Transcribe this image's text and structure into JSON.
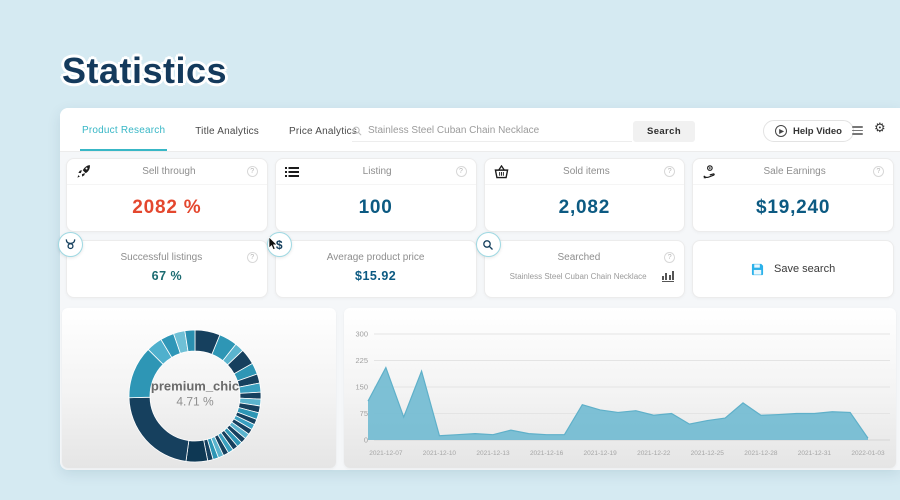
{
  "page": {
    "title": "Statistics"
  },
  "nav": {
    "tabs": [
      {
        "label": "Product Research",
        "active": true
      },
      {
        "label": "Title Analytics",
        "active": false
      },
      {
        "label": "Price Analytics",
        "active": false
      }
    ],
    "search": {
      "value": "Stainless Steel Cuban Chain Necklace",
      "button_label": "Search"
    },
    "help_video_label": "Help Video"
  },
  "icons": {
    "question": "?",
    "gear": "⚙",
    "play": "▶"
  },
  "stats": [
    {
      "title": "Sell through",
      "value": "2082 %",
      "color": "#e4472e",
      "icon": "rocket-icon"
    },
    {
      "title": "Listing",
      "value": "100",
      "color": "#0c5a82",
      "icon": "list-icon"
    },
    {
      "title": "Sold items",
      "value": "2,082",
      "color": "#0c5a82",
      "icon": "basket-icon"
    },
    {
      "title": "Sale Earnings",
      "value": "$19,240",
      "color": "#0c5a82",
      "icon": "hand-coin-icon"
    }
  ],
  "stats2": [
    {
      "title": "Successful listings",
      "value": "67 %",
      "color": "#1a6a70",
      "icon": "bull-badge-icon"
    },
    {
      "title": "Average product price",
      "value": "$15.92",
      "color": "#0c5a82",
      "icon": "dollar-badge-icon"
    },
    {
      "title": "Searched",
      "value": "Stainless Steel Cuban Chain Necklace",
      "icon": "magnifier-badge-icon"
    },
    {
      "title": "Save search",
      "icon": "floppy-icon"
    }
  ],
  "colors": {
    "accent_teal": "#38b7c6",
    "save_blue": "#2bb1ea",
    "area_fill": "#76bdd3",
    "area_stroke": "#5fb0c9"
  },
  "chart_data": [
    {
      "type": "pie",
      "subtype": "donut",
      "center_label": "premium_chic",
      "center_value": "4.71 %",
      "highlight": {
        "name": "premium_chic",
        "percent": 4.71
      },
      "segments": [
        {
          "v": 5.5,
          "c": "#16405e"
        },
        {
          "v": 4.0,
          "c": "#2e96b5"
        },
        {
          "v": 2.0,
          "c": "#5bb4ce"
        },
        {
          "v": 3.5,
          "c": "#16405e"
        },
        {
          "v": 2.5,
          "c": "#2e96b5"
        },
        {
          "v": 2.0,
          "c": "#16405e"
        },
        {
          "v": 2.0,
          "c": "#3aa0c0"
        },
        {
          "v": 1.5,
          "c": "#16405e"
        },
        {
          "v": 1.5,
          "c": "#5bb4ce"
        },
        {
          "v": 1.5,
          "c": "#16405e"
        },
        {
          "v": 1.5,
          "c": "#2e96b5"
        },
        {
          "v": 1.2,
          "c": "#16405e"
        },
        {
          "v": 1.2,
          "c": "#3aa0c0"
        },
        {
          "v": 1.2,
          "c": "#16405e"
        },
        {
          "v": 1.2,
          "c": "#5bb4ce"
        },
        {
          "v": 1.2,
          "c": "#16405e"
        },
        {
          "v": 1.2,
          "c": "#2e96b5"
        },
        {
          "v": 1.2,
          "c": "#16405e"
        },
        {
          "v": 1.2,
          "c": "#3aa0c0"
        },
        {
          "v": 1.2,
          "c": "#16405e"
        },
        {
          "v": 1.2,
          "c": "#5bb4ce"
        },
        {
          "v": 1.2,
          "c": "#2e96b5"
        },
        {
          "v": 1.2,
          "c": "#16405e"
        },
        {
          "v": 4.71,
          "c": "#0e3854"
        },
        {
          "v": 20.0,
          "c": "#16405e"
        },
        {
          "v": 11.5,
          "c": "#2e96b5"
        },
        {
          "v": 3.5,
          "c": "#4fb0cd"
        },
        {
          "v": 3.0,
          "c": "#2f97b8"
        },
        {
          "v": 2.5,
          "c": "#6fc0d6"
        },
        {
          "v": 2.2,
          "c": "#2a8fb0"
        }
      ]
    },
    {
      "type": "area",
      "x": [
        "2021-12-06",
        "2021-12-07",
        "2021-12-08",
        "2021-12-09",
        "2021-12-10",
        "2021-12-11",
        "2021-12-12",
        "2021-12-13",
        "2021-12-14",
        "2021-12-15",
        "2021-12-16",
        "2021-12-17",
        "2021-12-18",
        "2021-12-19",
        "2021-12-20",
        "2021-12-21",
        "2021-12-22",
        "2021-12-23",
        "2021-12-24",
        "2021-12-25",
        "2021-12-26",
        "2021-12-27",
        "2021-12-28",
        "2021-12-29",
        "2021-12-30",
        "2021-12-31",
        "2022-01-01",
        "2022-01-02",
        "2022-01-03"
      ],
      "values": [
        110,
        205,
        65,
        195,
        12,
        15,
        18,
        15,
        28,
        18,
        15,
        15,
        100,
        85,
        78,
        83,
        70,
        75,
        45,
        55,
        62,
        105,
        70,
        72,
        75,
        75,
        80,
        78,
        5
      ],
      "xticks": [
        "2021-12-07",
        "2021-12-10",
        "2021-12-13",
        "2021-12-16",
        "2021-12-19",
        "2021-12-22",
        "2021-12-25",
        "2021-12-28",
        "2021-12-31",
        "2022-01-03"
      ],
      "ylim": [
        0,
        300
      ],
      "yticks": [
        0,
        75,
        150,
        225,
        300
      ],
      "grid": true,
      "legend": false,
      "fill": "#76bdd3",
      "stroke": "#5fb0c9"
    }
  ]
}
